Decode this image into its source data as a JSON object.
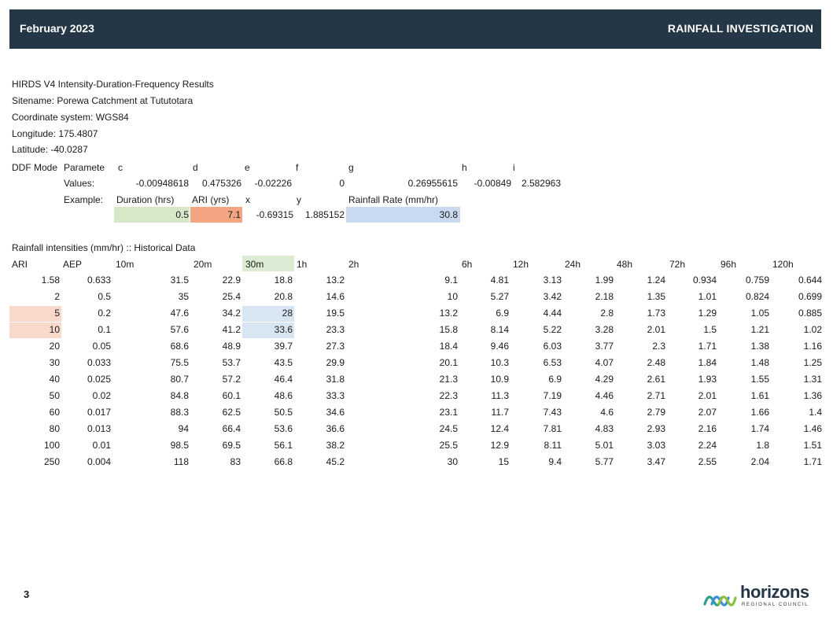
{
  "header": {
    "date": "February 2023",
    "title": "RAINFALL INVESTIGATION"
  },
  "meta": {
    "line1": "HIRDS V4 Intensity-Duration-Frequency Results",
    "line2": "Sitename: Porewa Catchment at Tututotara",
    "line3": "Coordinate system: WGS84",
    "line4": "Longitude: 175.4807",
    "line5": "Latitude: -40.0287"
  },
  "ddf": {
    "label": "DDF Mode",
    "param_label": "Paramete",
    "params": [
      "c",
      "d",
      "e",
      "f",
      "g",
      "h",
      "i"
    ],
    "values_label": "Values:",
    "values": [
      "-0.00948618",
      "0.475326",
      "-0.02226",
      "0",
      "0.26955615",
      "-0.00849",
      "2.582963"
    ],
    "example_label": "Example:",
    "ex_headers": [
      "Duration (hrs)",
      "ARI (yrs)",
      "x",
      "y",
      "Rainfall Rate (mm/hr)"
    ],
    "ex_values": [
      "0.5",
      "7.1",
      "-0.69315",
      "1.885152",
      "30.8"
    ]
  },
  "table": {
    "title": "Rainfall intensities (mm/hr) :: Historical Data",
    "headers": [
      "ARI",
      "AEP",
      "10m",
      "20m",
      "30m",
      "1h",
      "2h",
      "6h",
      "12h",
      "24h",
      "48h",
      "72h",
      "96h",
      "120h"
    ],
    "rows": [
      [
        "1.58",
        "0.633",
        "31.5",
        "22.9",
        "18.8",
        "13.2",
        "9.1",
        "4.81",
        "3.13",
        "1.99",
        "1.24",
        "0.934",
        "0.759",
        "0.644"
      ],
      [
        "2",
        "0.5",
        "35",
        "25.4",
        "20.8",
        "14.6",
        "10",
        "5.27",
        "3.42",
        "2.18",
        "1.35",
        "1.01",
        "0.824",
        "0.699"
      ],
      [
        "5",
        "0.2",
        "47.6",
        "34.2",
        "28",
        "19.5",
        "13.2",
        "6.9",
        "4.44",
        "2.8",
        "1.73",
        "1.29",
        "1.05",
        "0.885"
      ],
      [
        "10",
        "0.1",
        "57.6",
        "41.2",
        "33.6",
        "23.3",
        "15.8",
        "8.14",
        "5.22",
        "3.28",
        "2.01",
        "1.5",
        "1.21",
        "1.02"
      ],
      [
        "20",
        "0.05",
        "68.6",
        "48.9",
        "39.7",
        "27.3",
        "18.4",
        "9.46",
        "6.03",
        "3.77",
        "2.3",
        "1.71",
        "1.38",
        "1.16"
      ],
      [
        "30",
        "0.033",
        "75.5",
        "53.7",
        "43.5",
        "29.9",
        "20.1",
        "10.3",
        "6.53",
        "4.07",
        "2.48",
        "1.84",
        "1.48",
        "1.25"
      ],
      [
        "40",
        "0.025",
        "80.7",
        "57.2",
        "46.4",
        "31.8",
        "21.3",
        "10.9",
        "6.9",
        "4.29",
        "2.61",
        "1.93",
        "1.55",
        "1.31"
      ],
      [
        "50",
        "0.02",
        "84.8",
        "60.1",
        "48.6",
        "33.3",
        "22.3",
        "11.3",
        "7.19",
        "4.46",
        "2.71",
        "2.01",
        "1.61",
        "1.36"
      ],
      [
        "60",
        "0.017",
        "88.3",
        "62.5",
        "50.5",
        "34.6",
        "23.1",
        "11.7",
        "7.43",
        "4.6",
        "2.79",
        "2.07",
        "1.66",
        "1.4"
      ],
      [
        "80",
        "0.013",
        "94",
        "66.4",
        "53.6",
        "36.6",
        "24.5",
        "12.4",
        "7.81",
        "4.83",
        "2.93",
        "2.16",
        "1.74",
        "1.46"
      ],
      [
        "100",
        "0.01",
        "98.5",
        "69.5",
        "56.1",
        "38.2",
        "25.5",
        "12.9",
        "8.11",
        "5.01",
        "3.03",
        "2.24",
        "1.8",
        "1.51"
      ],
      [
        "250",
        "0.004",
        "118",
        "83",
        "66.8",
        "45.2",
        "30",
        "15",
        "9.4",
        "5.77",
        "3.47",
        "2.55",
        "2.04",
        "1.71"
      ]
    ]
  },
  "highlights": {
    "green": "#d6e8c8",
    "orange": "#f2a483",
    "blue": "#c9daf0",
    "pink": "#f9d9cc",
    "lightblue": "#d8e5f3",
    "lightgreen": "#dcebd3"
  },
  "footer": {
    "page": "3",
    "logo_word": "horizons",
    "logo_sub": "REGIONAL COUNCIL"
  }
}
